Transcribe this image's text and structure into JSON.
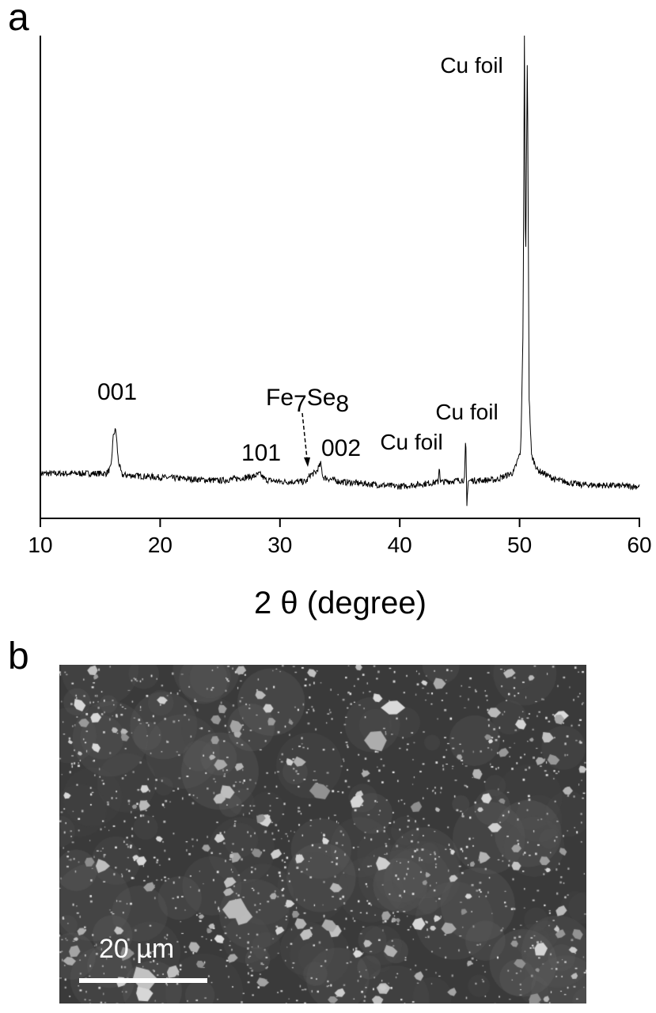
{
  "panels": {
    "a": "a",
    "b": "b"
  },
  "chart_data": {
    "type": "line",
    "title": "",
    "xlabel": "2 θ (degree)",
    "ylabel": "",
    "xlim": [
      10,
      60
    ],
    "ylim": [
      0,
      100
    ],
    "y_ticks_shown": false,
    "grid": false,
    "x_ticks": [
      10,
      20,
      30,
      40,
      50,
      60
    ],
    "x_tick_labels": [
      "10",
      "20",
      "30",
      "40",
      "50",
      "60"
    ],
    "series": [
      {
        "color": "#000000",
        "points": [
          [
            10,
            9.3
          ],
          [
            15.5,
            9.3
          ],
          [
            15.9,
            10.5
          ],
          [
            16.1,
            17.5
          ],
          [
            16.3,
            18.4
          ],
          [
            16.5,
            12
          ],
          [
            16.8,
            9
          ],
          [
            20,
            8.5
          ],
          [
            25,
            7.8
          ],
          [
            27.8,
            8.7
          ],
          [
            28.3,
            9.2
          ],
          [
            28.8,
            8
          ],
          [
            30,
            7.6
          ],
          [
            32.2,
            7.6
          ],
          [
            32.5,
            9
          ],
          [
            33,
            9.5
          ],
          [
            33.4,
            11.3
          ],
          [
            33.6,
            8.5
          ],
          [
            35,
            7.6
          ],
          [
            40,
            6.6
          ],
          [
            43.2,
            7.5
          ],
          [
            43.3,
            11
          ],
          [
            43.4,
            7.5
          ],
          [
            45.4,
            8
          ],
          [
            45.5,
            17
          ],
          [
            45.6,
            2.5
          ],
          [
            45.7,
            7.8
          ],
          [
            48,
            8
          ],
          [
            49.5,
            9.5
          ],
          [
            50.1,
            14
          ],
          [
            50.3,
            40
          ],
          [
            50.4,
            100
          ],
          [
            50.5,
            50
          ],
          [
            50.65,
            97
          ],
          [
            50.8,
            25
          ],
          [
            51,
            13
          ],
          [
            51.5,
            10
          ],
          [
            53,
            8
          ],
          [
            55,
            7
          ],
          [
            60,
            6.6
          ]
        ]
      }
    ],
    "annotations": [
      {
        "text": "001",
        "x": 16.2
      },
      {
        "text": "101",
        "x": 28.3
      },
      {
        "text_main": "Fe",
        "sub1": "7",
        "text_mid": "Se",
        "sub2": "8",
        "x": 32.3,
        "arrow": "dashed"
      },
      {
        "text": "002",
        "x": 33.5
      },
      {
        "text": "Cu foil",
        "x": 43.3
      },
      {
        "text": "Cu foil",
        "x": 45.5
      },
      {
        "text": "Cu foil",
        "x": 50.4
      }
    ]
  },
  "sem": {
    "scale_bar_label": "20 µm"
  }
}
